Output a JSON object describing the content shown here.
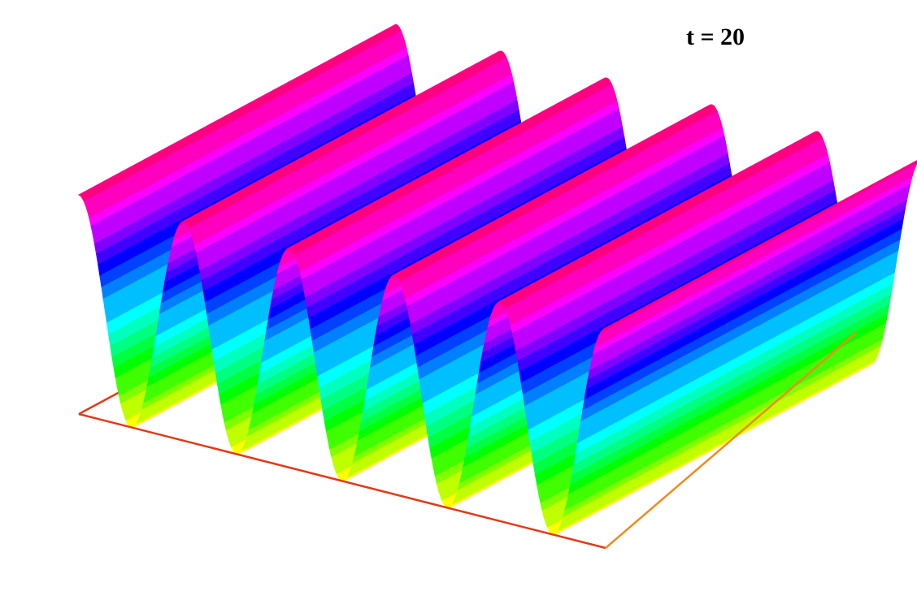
{
  "label": "t = 20"
}
